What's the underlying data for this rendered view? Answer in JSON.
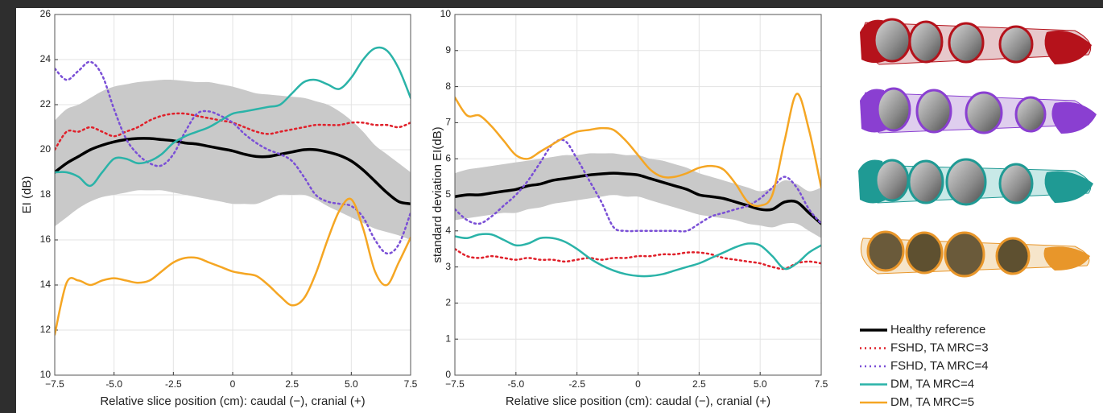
{
  "chart_data": [
    {
      "type": "line",
      "ylabel": "EI (dB)",
      "xlabel": "Relative slice position (cm): caudal (−), cranial (+)",
      "xlim": [
        -7.5,
        7.5
      ],
      "ylim": [
        10,
        26
      ],
      "xticks": [
        {
          "value": -7.5,
          "label": "−7.5"
        },
        {
          "value": -5,
          "label": "-5.0"
        },
        {
          "value": -2.5,
          "label": "-2.5"
        },
        0,
        2.5,
        {
          "value": 5,
          "label": "5.0"
        },
        7.5
      ],
      "yticks": [
        10,
        12,
        14,
        16,
        18,
        20,
        22,
        24,
        26
      ],
      "grid": true,
      "x": [
        -7.5,
        -7,
        -6.5,
        -6,
        -5.5,
        -5,
        -4.5,
        -4,
        -3.5,
        -3,
        -2.5,
        -2,
        -1.5,
        -1,
        -0.5,
        0,
        0.5,
        1,
        1.5,
        2,
        2.5,
        3,
        3.5,
        4,
        4.5,
        5,
        5.5,
        6,
        6.5,
        7,
        7.5
      ],
      "band": {
        "color": "#c9c9c9",
        "upper": [
          21.3,
          21.8,
          22.0,
          22.3,
          22.6,
          22.8,
          22.9,
          23.0,
          23.05,
          23.1,
          23.1,
          23.05,
          23.0,
          23.0,
          22.9,
          22.8,
          22.65,
          22.5,
          22.45,
          22.4,
          22.35,
          22.3,
          22.15,
          22.0,
          21.7,
          21.3,
          20.8,
          20.2,
          19.8,
          19.4,
          19.0
        ],
        "lower": [
          16.6,
          17.0,
          17.4,
          17.7,
          17.9,
          18.0,
          18.1,
          18.2,
          18.2,
          18.2,
          18.1,
          18.0,
          17.9,
          17.8,
          17.7,
          17.6,
          17.6,
          17.6,
          17.8,
          18.0,
          18.0,
          18.0,
          17.8,
          17.5,
          17.25,
          17.0,
          16.75,
          16.5,
          16.35,
          16.2,
          16.0
        ]
      },
      "series": [
        {
          "name": "Healthy reference",
          "color": "#000000",
          "style": "solid",
          "values": [
            19.0,
            19.4,
            19.7,
            20.0,
            20.2,
            20.35,
            20.45,
            20.5,
            20.5,
            20.45,
            20.4,
            20.3,
            20.25,
            20.15,
            20.05,
            19.95,
            19.8,
            19.7,
            19.7,
            19.8,
            19.9,
            20.0,
            20.0,
            19.9,
            19.75,
            19.5,
            19.1,
            18.6,
            18.1,
            17.7,
            17.6
          ]
        },
        {
          "name": "FSHD, TA MRC=3",
          "color": "#e0202a",
          "style": "dotted",
          "values": [
            20.0,
            20.8,
            20.8,
            21.0,
            20.8,
            20.6,
            20.8,
            21.0,
            21.3,
            21.5,
            21.6,
            21.6,
            21.5,
            21.4,
            21.3,
            21.2,
            21.0,
            20.8,
            20.7,
            20.8,
            20.9,
            21.0,
            21.1,
            21.1,
            21.1,
            21.2,
            21.2,
            21.1,
            21.1,
            21.0,
            21.2
          ]
        },
        {
          "name": "FSHD, TA MRC=4",
          "color": "#7a4fd6",
          "style": "dotted",
          "values": [
            23.6,
            23.1,
            23.5,
            23.9,
            23.3,
            21.8,
            20.5,
            19.8,
            19.4,
            19.3,
            19.8,
            20.8,
            21.6,
            21.7,
            21.5,
            21.2,
            20.7,
            20.3,
            20.0,
            19.8,
            19.5,
            18.8,
            18.0,
            17.7,
            17.6,
            17.5,
            17.0,
            16.0,
            15.4,
            15.8,
            17.2
          ]
        },
        {
          "name": "DM, TA MRC=4",
          "color": "#2ab3a8",
          "style": "solid",
          "values": [
            19.0,
            19.0,
            18.8,
            18.4,
            19.0,
            19.6,
            19.6,
            19.4,
            19.5,
            19.8,
            20.3,
            20.6,
            20.8,
            21.0,
            21.3,
            21.6,
            21.7,
            21.8,
            21.9,
            22.0,
            22.5,
            23.0,
            23.1,
            22.9,
            22.7,
            23.2,
            24.0,
            24.5,
            24.4,
            23.6,
            22.3
          ]
        },
        {
          "name": "DM, TA MRC=5",
          "color": "#f5a623",
          "style": "solid",
          "values": [
            11.8,
            14.1,
            14.2,
            14.0,
            14.2,
            14.3,
            14.2,
            14.1,
            14.2,
            14.6,
            15.0,
            15.2,
            15.2,
            15.0,
            14.8,
            14.6,
            14.5,
            14.4,
            14.0,
            13.5,
            13.1,
            13.4,
            14.5,
            16.0,
            17.3,
            17.8,
            16.5,
            14.6,
            14.0,
            15.0,
            16.1
          ]
        }
      ]
    },
    {
      "type": "line",
      "ylabel": "standard deviation EI(dB)",
      "xlabel": "Relative slice position (cm): caudal (−), cranial (+)",
      "xlim": [
        -7.5,
        7.5
      ],
      "ylim": [
        0,
        10
      ],
      "xticks": [
        {
          "value": -7.5,
          "label": "−7.5"
        },
        {
          "value": -5,
          "label": "-5.0"
        },
        {
          "value": -2.5,
          "label": "-2.5"
        },
        0,
        2.5,
        {
          "value": 5,
          "label": "5.0"
        },
        7.5
      ],
      "yticks": [
        0,
        1,
        2,
        3,
        4,
        5,
        6,
        7,
        8,
        9,
        10
      ],
      "grid": true,
      "x": [
        -7.5,
        -7,
        -6.5,
        -6,
        -5.5,
        -5,
        -4.5,
        -4,
        -3.5,
        -3,
        -2.5,
        -2,
        -1.5,
        -1,
        -0.5,
        0,
        0.5,
        1,
        1.5,
        2,
        2.5,
        3,
        3.5,
        4,
        4.5,
        5,
        5.5,
        6,
        6.5,
        7,
        7.5
      ],
      "band": {
        "color": "#c9c9c9",
        "upper": [
          5.6,
          5.7,
          5.75,
          5.8,
          5.85,
          5.9,
          5.95,
          6.0,
          6.05,
          6.1,
          6.1,
          6.15,
          6.15,
          6.15,
          6.1,
          6.1,
          6.0,
          5.95,
          5.85,
          5.75,
          5.6,
          5.5,
          5.4,
          5.3,
          5.2,
          5.1,
          5.2,
          5.4,
          5.3,
          5.1,
          5.2
        ],
        "lower": [
          4.3,
          4.35,
          4.4,
          4.45,
          4.5,
          4.5,
          4.6,
          4.65,
          4.75,
          4.8,
          4.85,
          4.9,
          4.95,
          5.0,
          4.95,
          4.95,
          4.85,
          4.75,
          4.65,
          4.55,
          4.45,
          4.4,
          4.35,
          4.3,
          4.2,
          4.15,
          4.1,
          4.2,
          4.2,
          4.0,
          3.8
        ]
      },
      "series": [
        {
          "name": "Healthy reference",
          "color": "#000000",
          "style": "solid",
          "values": [
            4.95,
            5.0,
            5.0,
            5.05,
            5.1,
            5.15,
            5.25,
            5.3,
            5.4,
            5.45,
            5.5,
            5.55,
            5.58,
            5.6,
            5.58,
            5.55,
            5.45,
            5.35,
            5.25,
            5.15,
            5.0,
            4.95,
            4.9,
            4.8,
            4.7,
            4.6,
            4.6,
            4.8,
            4.8,
            4.5,
            4.2
          ]
        },
        {
          "name": "FSHD, TA MRC=3",
          "color": "#e0202a",
          "style": "dotted",
          "values": [
            3.5,
            3.3,
            3.25,
            3.3,
            3.25,
            3.2,
            3.25,
            3.2,
            3.2,
            3.15,
            3.2,
            3.25,
            3.2,
            3.25,
            3.25,
            3.3,
            3.3,
            3.35,
            3.35,
            3.4,
            3.4,
            3.35,
            3.25,
            3.2,
            3.15,
            3.1,
            3.0,
            2.95,
            3.1,
            3.15,
            3.1
          ]
        },
        {
          "name": "FSHD, TA MRC=4",
          "color": "#7a4fd6",
          "style": "dotted",
          "values": [
            4.6,
            4.3,
            4.2,
            4.4,
            4.7,
            5.0,
            5.4,
            5.9,
            6.4,
            6.5,
            6.0,
            5.4,
            4.8,
            4.1,
            4.0,
            4.0,
            4.0,
            4.0,
            4.0,
            4.0,
            4.2,
            4.4,
            4.5,
            4.6,
            4.7,
            4.9,
            5.2,
            5.5,
            5.2,
            4.6,
            4.2
          ]
        },
        {
          "name": "DM, TA MRC=4",
          "color": "#2ab3a8",
          "style": "solid",
          "values": [
            3.85,
            3.8,
            3.9,
            3.9,
            3.75,
            3.6,
            3.65,
            3.8,
            3.8,
            3.7,
            3.5,
            3.25,
            3.05,
            2.9,
            2.8,
            2.75,
            2.75,
            2.8,
            2.9,
            3.0,
            3.1,
            3.25,
            3.4,
            3.55,
            3.65,
            3.6,
            3.3,
            2.95,
            3.1,
            3.4,
            3.6
          ]
        },
        {
          "name": "DM, TA MRC=5",
          "color": "#f5a623",
          "style": "solid",
          "values": [
            7.7,
            7.2,
            7.2,
            6.9,
            6.5,
            6.1,
            6.0,
            6.2,
            6.4,
            6.6,
            6.75,
            6.8,
            6.85,
            6.8,
            6.5,
            6.1,
            5.7,
            5.5,
            5.5,
            5.6,
            5.75,
            5.8,
            5.7,
            5.3,
            4.8,
            4.7,
            5.0,
            6.5,
            7.8,
            6.8,
            5.2
          ]
        }
      ]
    }
  ]
}
